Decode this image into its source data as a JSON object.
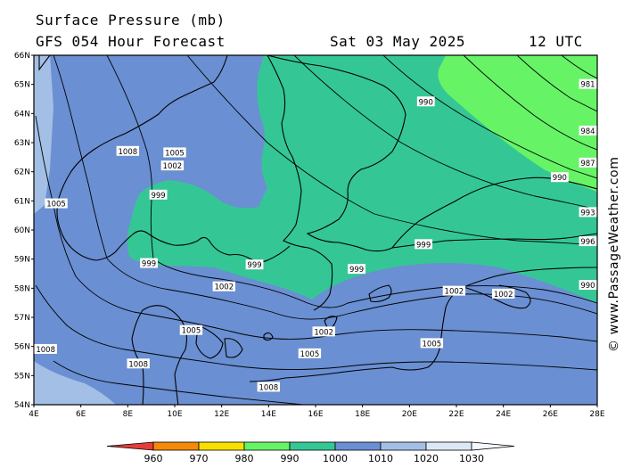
{
  "header": {
    "title": "Surface Pressure (mb)",
    "subtitle": "GFS 054 Hour Forecast",
    "date": "Sat 03 May 2025",
    "time": "12 UTC"
  },
  "copyright": "© www.PassageWeather.com",
  "colors": {
    "c1000_1010": "#6a8fd2",
    "c990_1000": "#34c795",
    "c980_990": "#66f466",
    "c1010_1020": "#a3bfe6",
    "land_line": "#000000"
  },
  "axes": {
    "lat_labels": [
      "66N",
      "65N",
      "64N",
      "63N",
      "62N",
      "61N",
      "60N",
      "59N",
      "58N",
      "57N",
      "56N",
      "55N",
      "54N"
    ],
    "lon_labels": [
      "4E",
      "6E",
      "8E",
      "10E",
      "12E",
      "14E",
      "16E",
      "18E",
      "20E",
      "22E",
      "24E",
      "26E",
      "28E"
    ]
  },
  "isobar_labels": [
    {
      "text": "1008",
      "lon": 8.0,
      "lat": 62.7
    },
    {
      "text": "1005",
      "lon": 10.0,
      "lat": 62.65
    },
    {
      "text": "1002",
      "lon": 9.9,
      "lat": 62.2
    },
    {
      "text": "1005",
      "lon": 4.95,
      "lat": 60.9
    },
    {
      "text": "999",
      "lon": 9.3,
      "lat": 61.2
    },
    {
      "text": "999",
      "lon": 8.9,
      "lat": 58.85
    },
    {
      "text": "999",
      "lon": 13.4,
      "lat": 58.8
    },
    {
      "text": "999",
      "lon": 17.75,
      "lat": 58.65
    },
    {
      "text": "1002",
      "lon": 12.1,
      "lat": 58.05
    },
    {
      "text": "1002",
      "lon": 21.9,
      "lat": 57.9
    },
    {
      "text": "1002",
      "lon": 24.0,
      "lat": 57.8
    },
    {
      "text": "1005",
      "lon": 10.7,
      "lat": 56.55
    },
    {
      "text": "1002",
      "lon": 16.35,
      "lat": 56.5
    },
    {
      "text": "1005",
      "lon": 20.95,
      "lat": 56.1
    },
    {
      "text": "1005",
      "lon": 15.75,
      "lat": 55.75
    },
    {
      "text": "1008",
      "lon": 4.5,
      "lat": 55.9
    },
    {
      "text": "1008",
      "lon": 8.45,
      "lat": 55.4
    },
    {
      "text": "1008",
      "lon": 14.0,
      "lat": 54.6
    },
    {
      "text": "990",
      "lon": 20.7,
      "lat": 64.4
    },
    {
      "text": "990",
      "lon": 26.4,
      "lat": 61.8
    },
    {
      "text": "999",
      "lon": 20.6,
      "lat": 59.5
    },
    {
      "text": "993",
      "lon": 27.6,
      "lat": 60.6
    },
    {
      "text": "996",
      "lon": 27.6,
      "lat": 59.6
    },
    {
      "text": "981",
      "lon": 27.6,
      "lat": 65.0
    },
    {
      "text": "984",
      "lon": 27.6,
      "lat": 63.4
    },
    {
      "text": "987",
      "lon": 27.6,
      "lat": 62.3
    },
    {
      "text": "990",
      "lon": 27.6,
      "lat": 58.1
    }
  ],
  "legend": {
    "labels": [
      "960",
      "970",
      "980",
      "990",
      "1000",
      "1010",
      "1020",
      "1030"
    ],
    "colors": [
      "#e63c3c",
      "#f58a0a",
      "#f7df00",
      "#66f466",
      "#34c795",
      "#6a8fd2",
      "#a3bfe6",
      "#dde8f6"
    ],
    "under_color": "#e63c3c",
    "over_color": "#f4f7fc"
  }
}
